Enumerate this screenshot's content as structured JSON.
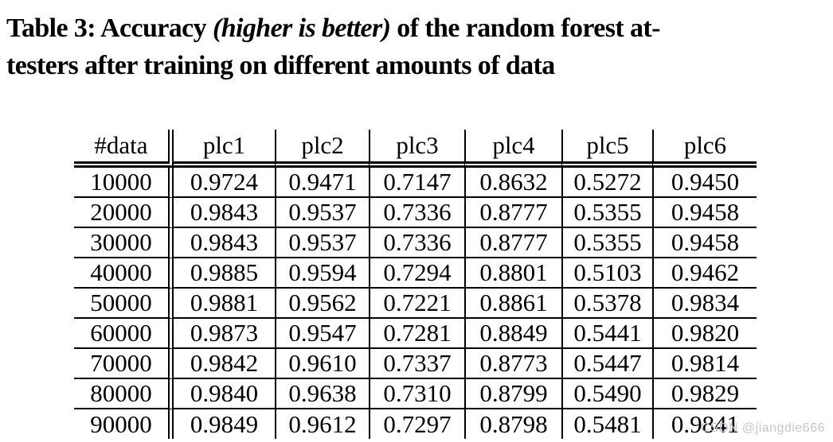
{
  "caption": {
    "part1": "Table 3: Accuracy ",
    "part2_italic": "(higher is better)",
    "part3": " of the random forest at-",
    "line2": "testers after training on different amounts of data"
  },
  "chart_data": {
    "type": "table",
    "title": "Table 3: Accuracy (higher is better) of the random forest attesters after training on different amounts of data",
    "columns": [
      "#data",
      "plc1",
      "plc2",
      "plc3",
      "plc4",
      "plc5",
      "plc6"
    ],
    "rows": [
      [
        "10000",
        "0.9724",
        "0.9471",
        "0.7147",
        "0.8632",
        "0.5272",
        "0.9450"
      ],
      [
        "20000",
        "0.9843",
        "0.9537",
        "0.7336",
        "0.8777",
        "0.5355",
        "0.9458"
      ],
      [
        "30000",
        "0.9843",
        "0.9537",
        "0.7336",
        "0.8777",
        "0.5355",
        "0.9458"
      ],
      [
        "40000",
        "0.9885",
        "0.9594",
        "0.7294",
        "0.8801",
        "0.5103",
        "0.9462"
      ],
      [
        "50000",
        "0.9881",
        "0.9562",
        "0.7221",
        "0.8861",
        "0.5378",
        "0.9834"
      ],
      [
        "60000",
        "0.9873",
        "0.9547",
        "0.7281",
        "0.8849",
        "0.5441",
        "0.9820"
      ],
      [
        "70000",
        "0.9842",
        "0.9610",
        "0.7337",
        "0.8773",
        "0.5447",
        "0.9814"
      ],
      [
        "80000",
        "0.9840",
        "0.9638",
        "0.7310",
        "0.8799",
        "0.5490",
        "0.9829"
      ],
      [
        "90000",
        "0.9849",
        "0.9612",
        "0.7297",
        "0.8798",
        "0.5481",
        "0.9841"
      ]
    ]
  },
  "watermark": "CSDN @jiangdie666",
  "colors": {
    "text": "#000000",
    "rules": "#000000",
    "background": "#ffffff",
    "watermark": "#c3c7ca"
  }
}
